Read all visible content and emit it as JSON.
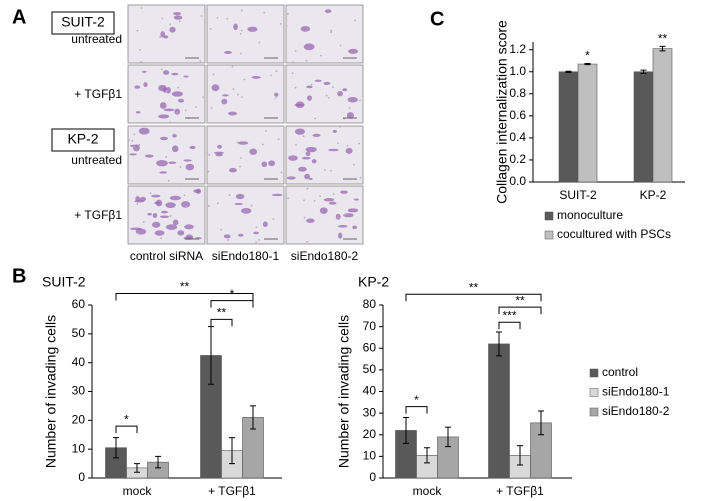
{
  "panel_labels": [
    "A",
    "B",
    "C"
  ],
  "micrographs": {
    "groups": [
      {
        "name": "SUIT-2",
        "conditions": [
          "untreated",
          "+ TGFβ1"
        ]
      },
      {
        "name": "KP-2",
        "conditions": [
          "untreated",
          "+ TGFβ1"
        ]
      }
    ],
    "columns": [
      "control siRNA",
      "siEndo180-1",
      "siEndo180-2"
    ]
  },
  "chart_data": [
    {
      "type": "bar",
      "y_label": "Collagen internalization score",
      "categories": [
        "SUIT-2",
        "KP-2"
      ],
      "series": [
        {
          "name": "monoculture",
          "color": "#595959",
          "values": [
            1.0,
            1.0
          ],
          "errors": [
            0.005,
            0.015
          ]
        },
        {
          "name": "cocultured with PSCs",
          "color": "#bfbfbf",
          "values": [
            1.07,
            1.21
          ],
          "errors": [
            0.005,
            0.02
          ]
        }
      ],
      "ylim": [
        0,
        1.27
      ],
      "yticks": [
        {
          "value": 0,
          "label": "0.0"
        },
        0.2,
        0.4,
        0.6,
        0.8,
        {
          "value": 1,
          "label": "1.0"
        },
        1.2
      ],
      "annotations": [
        "*",
        "**"
      ],
      "legend": "bottom"
    },
    {
      "type": "bar",
      "title": "SUIT-2",
      "y_label": "Number of invading cells",
      "categories": [
        "mock",
        "+ TGFβ1"
      ],
      "series": [
        {
          "color": "#595959",
          "values": [
            10.5,
            42.5
          ],
          "errors": [
            3.5,
            10
          ]
        },
        {
          "color": "#d9d9d9",
          "values": [
            3.5,
            9.5
          ],
          "errors": [
            1.5,
            4.5
          ]
        },
        {
          "color": "#a6a6a6",
          "values": [
            5.5,
            21
          ],
          "errors": [
            2,
            4
          ]
        }
      ],
      "ylim": [
        0,
        60
      ],
      "yticks": [
        0,
        10,
        20,
        30,
        40,
        50,
        60
      ],
      "annotations": [
        "*",
        "**",
        "**",
        "*"
      ]
    },
    {
      "type": "bar",
      "title": "KP-2",
      "y_label": "Number of invading cells",
      "categories": [
        "mock",
        "+ TGFβ1"
      ],
      "series": [
        {
          "name": "control",
          "color": "#595959",
          "values": [
            22,
            62
          ],
          "errors": [
            6,
            5.5
          ]
        },
        {
          "name": "siEndo180-1",
          "color": "#d9d9d9",
          "values": [
            10.5,
            10.5
          ],
          "errors": [
            3.5,
            4.5
          ]
        },
        {
          "name": "siEndo180-2",
          "color": "#a6a6a6",
          "values": [
            19,
            25.5
          ],
          "errors": [
            4.5,
            5.5
          ]
        }
      ],
      "ylim": [
        0,
        80
      ],
      "yticks": [
        0,
        10,
        20,
        30,
        40,
        50,
        60,
        70,
        80
      ],
      "annotations": [
        "*",
        "**",
        "***",
        "**"
      ],
      "legend": "right"
    }
  ]
}
